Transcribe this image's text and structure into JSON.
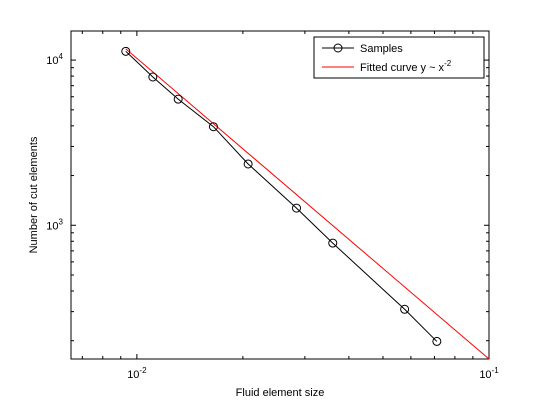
{
  "chart_data": {
    "type": "line",
    "xscale": "log",
    "yscale": "log",
    "xlim": [
      0.0065,
      0.1
    ],
    "ylim": [
      155,
      15000
    ],
    "xlabel": "Fluid element size",
    "ylabel": "Number of cut elements",
    "x_ticks": [
      {
        "value": 0.01,
        "base": "10",
        "exp": "-2"
      },
      {
        "value": 0.1,
        "base": "10",
        "exp": "-1"
      }
    ],
    "y_ticks": [
      {
        "value": 1000,
        "base": "10",
        "exp": "3"
      },
      {
        "value": 10000,
        "base": "10",
        "exp": "4"
      }
    ],
    "grid": false,
    "legend_position": "top-right",
    "series": [
      {
        "name": "Samples",
        "color": "#000000",
        "marker": "circle",
        "x": [
          0.0093,
          0.0111,
          0.0131,
          0.0165,
          0.0207,
          0.0284,
          0.036,
          0.0576,
          0.0711
        ],
        "y": [
          11300,
          7900,
          5800,
          3950,
          2350,
          1270,
          780,
          310,
          198
        ]
      },
      {
        "name": "Fitted curve y ~ x",
        "name_exp": "-2",
        "color": "#ff0000",
        "marker": "none",
        "x": [
          0.0093,
          0.1
        ],
        "y": [
          11700,
          155
        ]
      }
    ]
  }
}
